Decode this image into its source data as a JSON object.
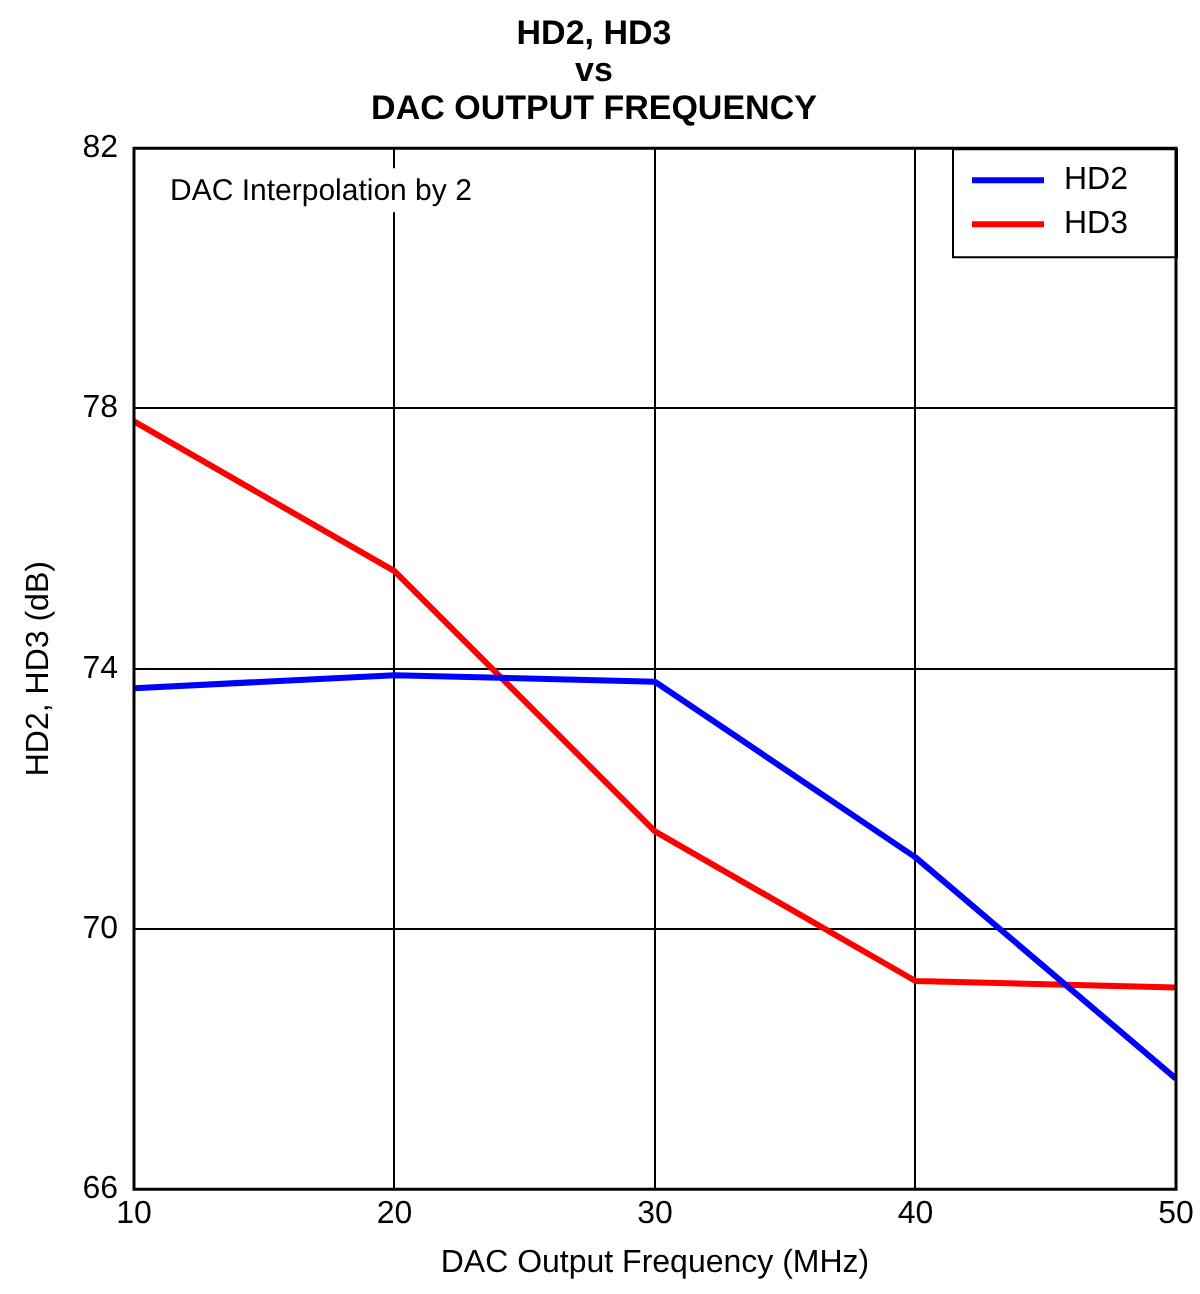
{
  "chart_data": {
    "type": "line",
    "title": "HD2, HD3\nvs\nDAC OUTPUT FREQUENCY",
    "xlabel": "DAC Output Frequency (MHz)",
    "ylabel": "HD2, HD3 (dB)",
    "x": [
      10,
      20,
      30,
      40,
      50
    ],
    "series": [
      {
        "name": "HD2",
        "color": "#0000ff",
        "values": [
          73.7,
          73.9,
          73.8,
          71.1,
          67.7
        ]
      },
      {
        "name": "HD3",
        "color": "#ff0000",
        "values": [
          77.8,
          75.5,
          71.5,
          69.2,
          69.1
        ]
      }
    ],
    "xlim": [
      10,
      50
    ],
    "xticks": [
      10,
      20,
      30,
      40,
      50
    ],
    "ylim": [
      66,
      82
    ],
    "yticks": [
      66,
      70,
      74,
      78,
      82
    ],
    "grid": true,
    "legend": "top right",
    "marker": "none",
    "line_style": "solid",
    "annotations": [
      "DAC Interpolation by 2"
    ]
  }
}
